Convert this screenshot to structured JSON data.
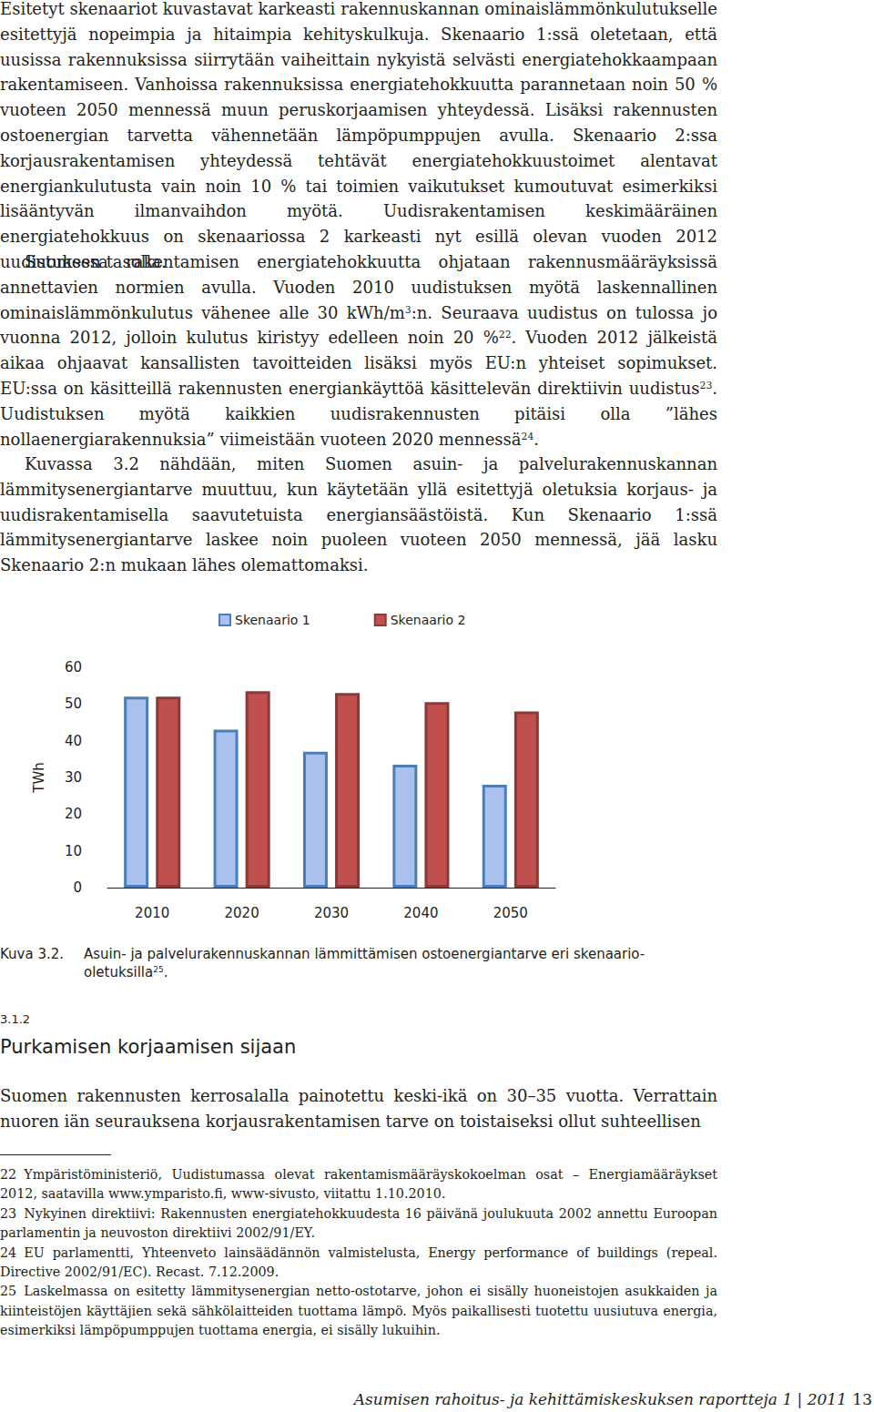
{
  "body": [
    [
      "Esitetyt skenaariot kuvastavat karkeasti rakennuskannan ominaislämmönkulutukselle esitettyjä nopeimpia ja hitaimpia kehityskulkuja. Skenaario 1:ssä oletetaan, että uusissa rakennuksissa siirrytään vaiheittain nykyistä selvästi energiatehokkaampaan rakentamiseen. Vanhoissa rakennuksissa energiatehokkuutta parannetaan noin 50 % vuoteen 2050 mennessä muun peruskorjaamisen yhteydessä. Lisäksi rakennusten ostoenergian tarvetta vähennetään lämpöpumppujen avulla. Skenaario 2:ssa korjausrakentamisen yhteydessä tehtävät energiatehokkuustoimet alentavat energiankulutusta vain noin 10 % tai toimien vaikutukset kumoutuvat esimerkiksi lisääntyvän ilmanvaihdon myötä. Uudisrakentamisen keskimääräinen energiatehokkuus on skenaariossa 2 karkeasti nyt esillä olevan vuoden 2012 uudistuksen tasolla."
    ],
    [
      "Suomessa rakentamisen energiatehokkuutta ohjataan rakennusmääräyksissä annettavien normien avulla. Vuoden 2010 uudistuksen myötä laskennallinen ominaislämmönkulutus vähenee alle 30 kWh/m",
      {
        "sup": "3"
      },
      ":n. Seuraava uudistus on tulossa jo vuonna 2012, jolloin kulutus kiristyy edelleen noin 20 %",
      {
        "sup": "22"
      },
      ". Vuoden 2012 jälkeistä aikaa ohjaavat kansallisten tavoitteiden lisäksi myös EU:n yhteiset sopimukset. EU:ssa on käsitteillä rakennusten energiankäyttöä käsittelevän direktiivin uudistus",
      {
        "sup": "23"
      },
      ". Uudistuksen myötä kaikkien uudisrakennusten pitäisi olla ”lähes nollaenergiarakennuksia” viimeistään vuoteen 2020 mennessä",
      {
        "sup": "24"
      },
      "."
    ],
    [
      "Kuvassa 3.2 nähdään, miten Suomen asuin- ja palvelurakennuskannan lämmitysenergiantarve muuttuu, kun käytetään yllä esitettyjä oletuksia korjaus- ja uudisrakentamisella saavutetuista energiansäästöistä. Kun Skenaario 1:ssä lämmitysenergiantarve laskee noin puoleen vuoteen 2050 mennessä, jää lasku Skenaario 2:n mukaan lähes olemattomaksi."
    ]
  ],
  "chart_data": {
    "type": "bar",
    "categories": [
      "2010",
      "2020",
      "2030",
      "2040",
      "2050"
    ],
    "series": [
      {
        "name": "Skenaario 1",
        "color": "#a9c1ec",
        "values": [
          52,
          43,
          37,
          33.5,
          28
        ]
      },
      {
        "name": "Skenaario 2",
        "color": "#c0504d",
        "values": [
          52,
          53.5,
          53,
          50.5,
          48
        ]
      }
    ],
    "ylabel": "TWh",
    "ylim": [
      0,
      60
    ],
    "yticks": [
      0,
      10,
      20,
      30,
      40,
      50,
      60
    ],
    "grid": false,
    "legend": "top"
  },
  "caption": {
    "label": "Kuva 3.2.",
    "text": [
      "Asuin- ja palvelurakennuskannan lämmittämisen ostoenergiantarve eri skenaario-oletuksilla",
      {
        "sup": "25"
      },
      "."
    ]
  },
  "section": {
    "number": "3.1.2",
    "title": "Purkamisen korjaamisen sijaan",
    "text": [
      "Suomen rakennusten kerrosalalla painotettu keski-ikä on 30–35 vuotta. Verrattain nuoren iän seurauksena korjausrakentamisen tarve on toistaiseksi ollut suhteellisen"
    ]
  },
  "footnotes": [
    {
      "number": "22",
      "text": "Ympäristöministeriö, Uudistumassa olevat rakentamismääräyskokoelman osat – Energiamääräykset 2012, saatavilla www.ymparisto.fi, www-sivusto, viitattu 1.10.2010."
    },
    {
      "number": "23",
      "text": "Nykyinen direktiivi: Rakennusten energiatehokkuudesta 16 päivänä joulukuuta 2002 annettu Euroopan parlamentin ja neuvoston direktiivi 2002/91/EY."
    },
    {
      "number": "24",
      "text": "EU parlamentti, Yhteenveto lainsäädännön valmistelusta, Energy performance of buildings (repeal. Directive 2002/91/EC). Recast. 7.12.2009."
    },
    {
      "number": "25",
      "text": "Laskelmassa on esitetty lämmitysenergian netto-ostotarve, johon ei sisälly huoneistojen asukkaiden ja kiinteistöjen käyttäjien sekä sähkölaitteiden tuottama lämpö. Myös paikallisesti tuotettu uusiutuva energia, esimerkiksi lämpöpumppujen tuottama energia, ei sisälly lukuihin."
    }
  ],
  "footer": {
    "text": "Asumisen rahoitus- ja kehittämiskeskuksen raportteja 1 | 2011",
    "page": "13"
  }
}
